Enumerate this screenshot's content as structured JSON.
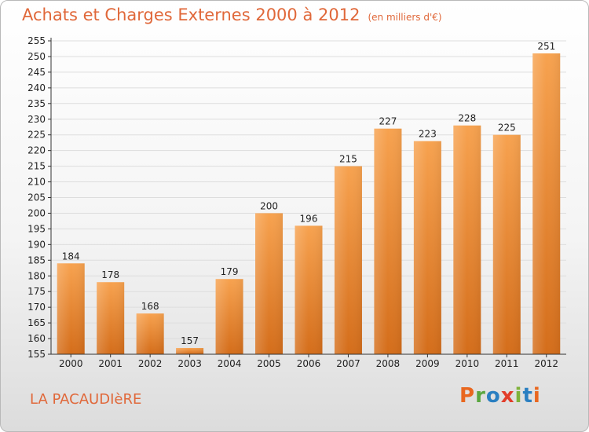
{
  "header": {
    "title": "Achats et Charges Externes 2000 à 2012",
    "subtitle": "(en milliers d'€)"
  },
  "footer": {
    "commune": "LA PACAUDIèRE",
    "brand": "Proxiti",
    "brand_colors": [
      "#e9671f",
      "#5aa640",
      "#2a7fc1",
      "#e23d2a",
      "#7fb23a",
      "#2a7fc1",
      "#e9671f"
    ]
  },
  "colors": {
    "bar_top": "#f7a24f",
    "bar_bottom": "#d46d1a",
    "axis": "#333333",
    "grid": "#dddddd",
    "text": "#222222"
  },
  "chart_data": {
    "type": "bar",
    "categories": [
      "2000",
      "2001",
      "2002",
      "2003",
      "2004",
      "2005",
      "2006",
      "2007",
      "2008",
      "2009",
      "2010",
      "2011",
      "2012"
    ],
    "values": [
      184,
      178,
      168,
      157,
      179,
      200,
      196,
      215,
      227,
      223,
      228,
      225,
      251
    ],
    "ylim": [
      155,
      255
    ],
    "ytick_step": 5,
    "grid": true
  }
}
